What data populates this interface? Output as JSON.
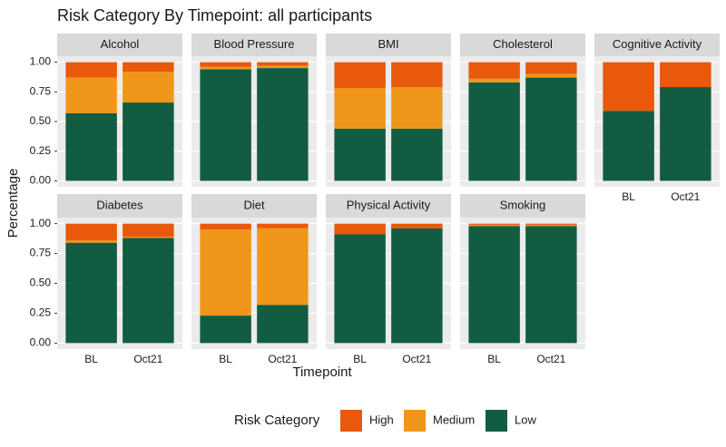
{
  "chart_data": {
    "type": "stacked_bar",
    "title": "Risk Category By Timepoint: all participants",
    "xlabel": "Timepoint",
    "ylabel": "Percentage",
    "legend_title": "Risk Category",
    "legend": "bottom",
    "grid": true,
    "categories": [
      "BL",
      "Oct21"
    ],
    "ylim": [
      -0.05,
      1.05
    ],
    "yticks": [
      {
        "value": 0,
        "label": "0.00"
      },
      {
        "value": 0.25,
        "label": "0.25"
      },
      {
        "value": 0.5,
        "label": "0.50"
      },
      {
        "value": 0.75,
        "label": "0.75"
      },
      {
        "value": 1,
        "label": "1.00"
      }
    ],
    "series": [
      {
        "name": "High",
        "color": "#e8590c"
      },
      {
        "name": "Medium",
        "color": "#f0961b"
      },
      {
        "name": "Low",
        "color": "#125c42"
      }
    ],
    "facets": [
      {
        "title": "Alcohol",
        "values": [
          [
            0.13,
            0.08
          ],
          [
            0.3,
            0.26
          ],
          [
            0.57,
            0.66
          ]
        ]
      },
      {
        "title": "Blood Pressure",
        "values": [
          [
            0.04,
            0.03
          ],
          [
            0.02,
            0.02
          ],
          [
            0.94,
            0.95
          ]
        ]
      },
      {
        "title": "BMI",
        "values": [
          [
            0.22,
            0.21
          ],
          [
            0.34,
            0.35
          ],
          [
            0.44,
            0.44
          ]
        ]
      },
      {
        "title": "Cholesterol",
        "values": [
          [
            0.14,
            0.1
          ],
          [
            0.03,
            0.03
          ],
          [
            0.83,
            0.87
          ]
        ]
      },
      {
        "title": "Cognitive Activity",
        "values": [
          [
            0.41,
            0.21
          ],
          [
            0,
            0
          ],
          [
            0.59,
            0.79
          ]
        ]
      },
      {
        "title": "Diabetes",
        "values": [
          [
            0.14,
            0.11
          ],
          [
            0.02,
            0.01
          ],
          [
            0.84,
            0.88
          ]
        ]
      },
      {
        "title": "Diet",
        "values": [
          [
            0.05,
            0.04
          ],
          [
            0.72,
            0.64
          ],
          [
            0.23,
            0.32
          ]
        ]
      },
      {
        "title": "Physical Activity",
        "values": [
          [
            0.09,
            0.04
          ],
          [
            0,
            0
          ],
          [
            0.91,
            0.96
          ]
        ]
      },
      {
        "title": "Smoking",
        "values": [
          [
            0.01,
            0.01
          ],
          [
            0.01,
            0.01
          ],
          [
            0.98,
            0.98
          ]
        ]
      }
    ]
  }
}
